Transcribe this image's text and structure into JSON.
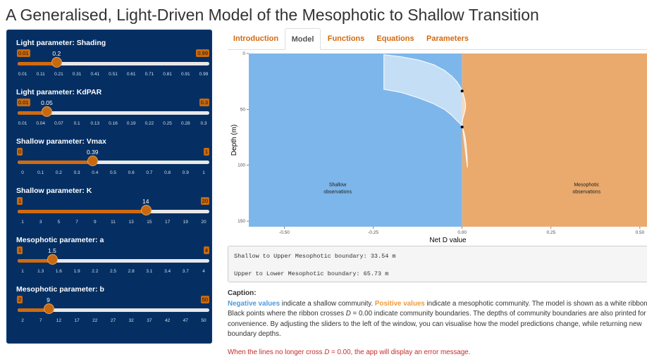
{
  "app": {
    "title": "A Generalised, Light-Driven Model of the Mesophotic to Shallow Transition"
  },
  "sliders": [
    {
      "label": "Light parameter: Shading",
      "min": "0.01",
      "max": "0.99",
      "value": "0.2",
      "fraction": 0.192,
      "ticks": [
        "0.01",
        "0.11",
        "0.21",
        "0.31",
        "0.41",
        "0.51",
        "0.61",
        "0.71",
        "0.81",
        "0.91",
        "0.99"
      ]
    },
    {
      "label": "Light parameter: KdPAR",
      "min": "0.01",
      "max": "0.3",
      "value": "0.05",
      "fraction": 0.138,
      "ticks": [
        "0.01",
        "0.04",
        "0.07",
        "0.1",
        "0.13",
        "0.16",
        "0.19",
        "0.22",
        "0.25",
        "0.28",
        "0.3"
      ]
    },
    {
      "label": "Shallow parameter: Vmax",
      "min": "0",
      "max": "1",
      "value": "0.39",
      "fraction": 0.39,
      "ticks": [
        "0",
        "0.1",
        "0.2",
        "0.3",
        "0.4",
        "0.5",
        "0.6",
        "0.7",
        "0.8",
        "0.9",
        "1"
      ]
    },
    {
      "label": "Shallow parameter: K",
      "min": "1",
      "max": "20",
      "value": "14",
      "fraction": 0.684,
      "ticks": [
        "1",
        "3",
        "5",
        "7",
        "9",
        "11",
        "13",
        "15",
        "17",
        "19",
        "20"
      ]
    },
    {
      "label": "Mesophotic parameter: a",
      "min": "1",
      "max": "4",
      "value": "1.5",
      "fraction": 0.167,
      "ticks": [
        "1",
        "1.3",
        "1.6",
        "1.9",
        "2.2",
        "2.5",
        "2.8",
        "3.1",
        "3.4",
        "3.7",
        "4"
      ]
    },
    {
      "label": "Mesophotic parameter: b",
      "min": "2",
      "max": "50",
      "value": "9",
      "fraction": 0.146,
      "ticks": [
        "2",
        "7",
        "12",
        "17",
        "22",
        "27",
        "32",
        "37",
        "42",
        "47",
        "50"
      ]
    }
  ],
  "tabs": [
    "Introduction",
    "Model",
    "Functions",
    "Equations",
    "Parameters"
  ],
  "active_tab": "Model",
  "chart_data": {
    "type": "area",
    "xlabel": "Net D value",
    "ylabel": "Depth (m)",
    "xlim": [
      -0.6,
      0.52
    ],
    "ylim": [
      155,
      0
    ],
    "y_reversed": true,
    "x_ticks": [
      "-0.50",
      "-0.25",
      "0.00",
      "0.25",
      "0.50"
    ],
    "x_tick_values": [
      -0.5,
      -0.25,
      0,
      0.25,
      0.5
    ],
    "y_ticks": [
      "0",
      "50",
      "100",
      "150"
    ],
    "y_tick_values": [
      0,
      50,
      100,
      150
    ],
    "regions": [
      {
        "label_line1": "Shallow",
        "label_line2": "observations",
        "x_range": [
          -0.6,
          0
        ],
        "color": "#7db6eb",
        "label_x": -0.35,
        "label_y": 122
      },
      {
        "label_line1": "Mesophotic",
        "label_line2": "observations",
        "x_range": [
          0,
          0.52
        ],
        "color": "#eaaa6e",
        "label_x": 0.35,
        "label_y": 122
      }
    ],
    "ribbon": {
      "color": "#ffffff",
      "upper_edge": [
        [
          -0.22,
          1
        ],
        [
          -0.17,
          3
        ],
        [
          -0.12,
          6
        ],
        [
          -0.08,
          10
        ],
        [
          -0.05,
          15
        ],
        [
          -0.03,
          20
        ],
        [
          -0.015,
          25
        ],
        [
          -0.005,
          30
        ],
        [
          0,
          33.54
        ],
        [
          0.004,
          37
        ],
        [
          0.008,
          42
        ],
        [
          0.01,
          46
        ],
        [
          0.009,
          50
        ],
        [
          0.006,
          54
        ],
        [
          0.002,
          58
        ],
        [
          0,
          62
        ]
      ],
      "lower_edge": [
        [
          -0.22,
          32
        ],
        [
          -0.17,
          35
        ],
        [
          -0.12,
          40
        ],
        [
          -0.08,
          45
        ],
        [
          -0.05,
          50
        ],
        [
          -0.03,
          55
        ],
        [
          -0.015,
          60
        ],
        [
          -0.005,
          63
        ],
        [
          0,
          65.73
        ],
        [
          0.005,
          70
        ],
        [
          0.009,
          76
        ],
        [
          0.012,
          84
        ],
        [
          0.014,
          92
        ],
        [
          0.015,
          102
        ]
      ]
    },
    "boundary_points": [
      {
        "x": 0,
        "y": 33.54
      },
      {
        "x": 0,
        "y": 65.73
      }
    ]
  },
  "output": {
    "line1": "Shallow to Upper Mesophotic boundary: 33.54 m",
    "line2": "Upper to Lower Mesophotic boundary: 65.73 m"
  },
  "caption": {
    "title": "Caption:",
    "negative": "Negative values",
    "part1": " indicate a shallow community. ",
    "positive": "Positive values",
    "part2": " indicate a mesophotic community. The model is shown as a white ribbon. Black points where the ribbon crosses ",
    "d_symbol": "D",
    "part3": " = 0.00 indicate community boundaries. The depths of community boundaries are also printed for convenience. By adjusting the sliders to the left of the window, you can visualise how the model predictions change, while returning new boundary depths."
  },
  "error_note": {
    "part1": "When the lines no longer cross ",
    "d_symbol": "D",
    "part2": " = 0.00, the app will display an error message."
  },
  "colors": {
    "sidebar": "#052f63",
    "accent": "#c8690f",
    "shallow": "#7db6eb",
    "mesophotic": "#eaaa6e"
  }
}
